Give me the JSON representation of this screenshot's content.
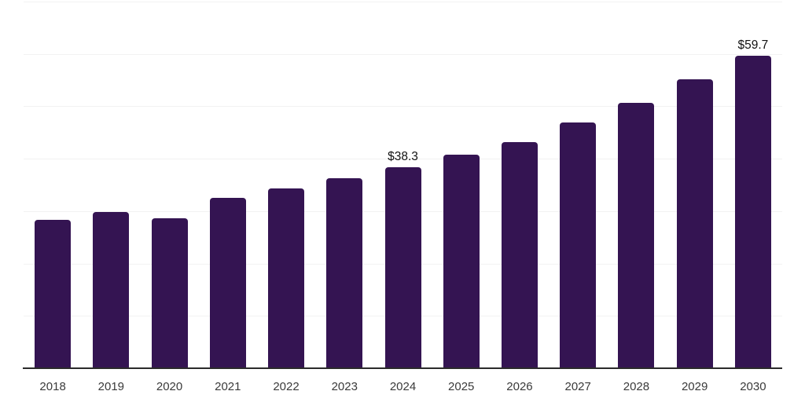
{
  "chart_data": {
    "type": "bar",
    "title": "",
    "xlabel": "",
    "ylabel": "",
    "categories": [
      "2018",
      "2019",
      "2020",
      "2021",
      "2022",
      "2023",
      "2024",
      "2025",
      "2026",
      "2027",
      "2028",
      "2029",
      "2030"
    ],
    "values": [
      28.4,
      29.8,
      28.6,
      32.6,
      34.3,
      36.3,
      38.3,
      40.7,
      43.2,
      46.9,
      50.7,
      55.2,
      59.7
    ],
    "point_labels": [
      null,
      null,
      null,
      null,
      null,
      null,
      "$38.3",
      null,
      null,
      null,
      null,
      null,
      "$59.7"
    ],
    "ylim": [
      0,
      70
    ],
    "grid_step": 10,
    "grid": "horizontal-only",
    "legend": "none",
    "y_axis_tick_labels_visible": false,
    "colors": {
      "bar": "#341452",
      "grid_line": "#f2f2f2",
      "axis_line": "#2b2b2b",
      "value_label": "#111111",
      "tick_label": "#3a3a3a",
      "background": "#ffffff"
    }
  }
}
